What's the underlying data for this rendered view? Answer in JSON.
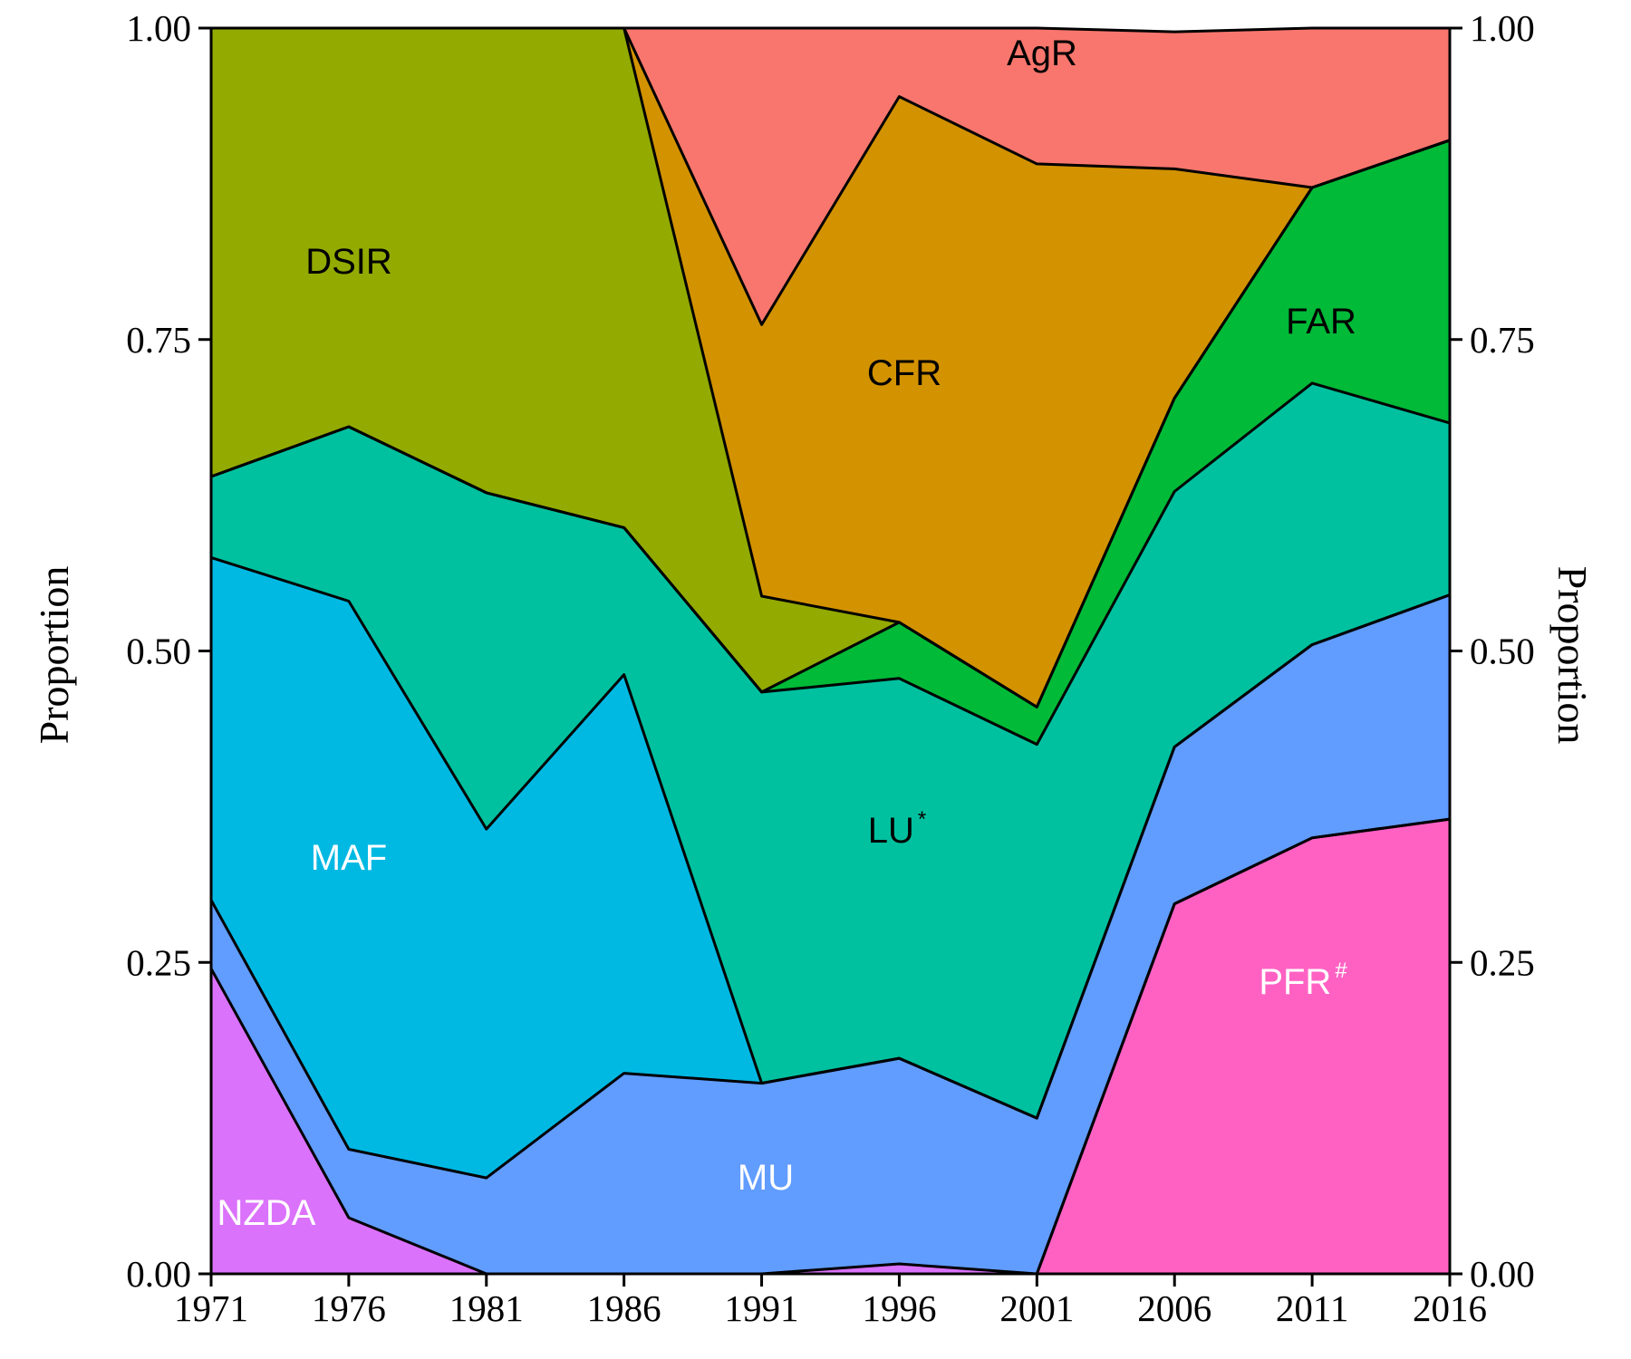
{
  "chart_data": {
    "type": "area",
    "stacked": true,
    "x": [
      1971,
      1976,
      1981,
      1986,
      1991,
      1996,
      2001,
      2006,
      2011,
      2016
    ],
    "x_ticks": [
      "1971",
      "1976",
      "1981",
      "1986",
      "1991",
      "1996",
      "2001",
      "2006",
      "2011",
      "2016"
    ],
    "ylabel_left": "Proportion",
    "ylabel_right": "Proportion",
    "ylim": [
      0,
      1
    ],
    "y_ticks": [
      "0.00",
      "0.25",
      "0.50",
      "0.75",
      "1.00"
    ],
    "grid": false,
    "series": [
      {
        "name": "PFR",
        "superscript": "#",
        "color": "#ff61c3",
        "label_color": "#ffffff",
        "values": [
          0,
          0,
          0,
          0,
          0,
          0,
          0,
          0.297,
          0.35,
          0.365
        ]
      },
      {
        "name": "NZDA",
        "color": "#db72fb",
        "label_color": "#ffffff",
        "values": [
          0.245,
          0.045,
          0,
          0,
          0,
          0.008,
          0,
          0,
          0,
          0
        ]
      },
      {
        "name": "MU",
        "color": "#619cff",
        "label_color": "#ffffff",
        "values": [
          0.055,
          0.055,
          0.077,
          0.161,
          0.153,
          0.165,
          0.125,
          0.126,
          0.155,
          0.18
        ]
      },
      {
        "name": "MAF",
        "color": "#00b9e3",
        "label_color": "#ffffff",
        "values": [
          0.275,
          0.44,
          0.28,
          0.32,
          0,
          0,
          0,
          0,
          0,
          0
        ]
      },
      {
        "name": "LU",
        "superscript": "*",
        "color": "#00c19f",
        "label_color": "#000000",
        "values": [
          0.065,
          0.14,
          0.27,
          0.118,
          0.314,
          0.305,
          0.3,
          0.205,
          0.21,
          0.138
        ]
      },
      {
        "name": "FAR",
        "color": "#00ba38",
        "label_color": "#000000",
        "values": [
          0,
          0,
          0,
          0,
          0,
          0.045,
          0.03,
          0.075,
          0.157,
          0.227
        ]
      },
      {
        "name": "DSIR",
        "color": "#93aa00",
        "label_color": "#000000",
        "values": [
          0.36,
          0.32,
          0.373,
          0.401,
          0.077,
          0,
          0,
          0,
          0,
          0
        ]
      },
      {
        "name": "CFR",
        "color": "#d39200",
        "label_color": "#000000",
        "values": [
          0,
          0,
          0,
          0,
          0.218,
          0.422,
          0.436,
          0.184,
          0,
          0
        ]
      },
      {
        "name": "AgR",
        "color": "#f8766d",
        "label_color": "#000000",
        "values": [
          0,
          0,
          0,
          0,
          0.238,
          0.055,
          0.109,
          0.11,
          0.128,
          0.09
        ]
      }
    ]
  }
}
